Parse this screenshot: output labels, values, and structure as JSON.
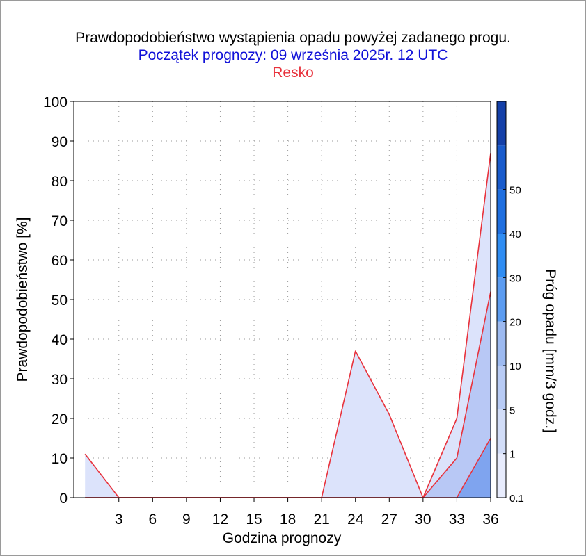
{
  "chart_data": {
    "type": "area",
    "title": "Prawdopodobieństwo wystąpienia opadu powyżej zadanego progu.",
    "subtitle": "Początek prognozy: 09 września 2025r. 12 UTC",
    "location": "Resko",
    "xlabel": "Godzina prognozy",
    "ylabel": "Prawdopodobieństwo [%]",
    "colorbar_label": "Próg opadu [mm/3 godz.]",
    "xlim": [
      -1,
      36
    ],
    "ylim": [
      0,
      100
    ],
    "x_ticks": [
      3,
      6,
      9,
      12,
      15,
      18,
      21,
      24,
      27,
      30,
      33,
      36
    ],
    "y_ticks": [
      0,
      10,
      20,
      30,
      40,
      50,
      60,
      70,
      80,
      90,
      100
    ],
    "grid": true,
    "x": [
      0,
      3,
      6,
      9,
      12,
      15,
      18,
      21,
      24,
      27,
      30,
      33,
      36
    ],
    "series": [
      {
        "name": "0.1",
        "color": "#dce3fb",
        "values": [
          11,
          0,
          0,
          0,
          0,
          0,
          0,
          0,
          37,
          21,
          0,
          20,
          87
        ]
      },
      {
        "name": "1",
        "color": "#b8c8f5",
        "values": [
          0,
          0,
          0,
          0,
          0,
          0,
          0,
          0,
          0,
          0,
          0,
          10,
          52
        ]
      },
      {
        "name": "5",
        "color": "#7fa4ef",
        "values": [
          0,
          0,
          0,
          0,
          0,
          0,
          0,
          0,
          0,
          0,
          0,
          0,
          15
        ]
      }
    ],
    "line_color": "#e8323c",
    "colorbar": {
      "labels": [
        "0.1",
        "1",
        "5",
        "10",
        "20",
        "30",
        "40",
        "50"
      ],
      "colors": [
        "#e8ecfd",
        "#d2ddf8",
        "#b8cbf5",
        "#9dbaf1",
        "#5c9cf1",
        "#2f8df3",
        "#1f6fe0",
        "#195bcc",
        "#1440a8"
      ]
    }
  }
}
